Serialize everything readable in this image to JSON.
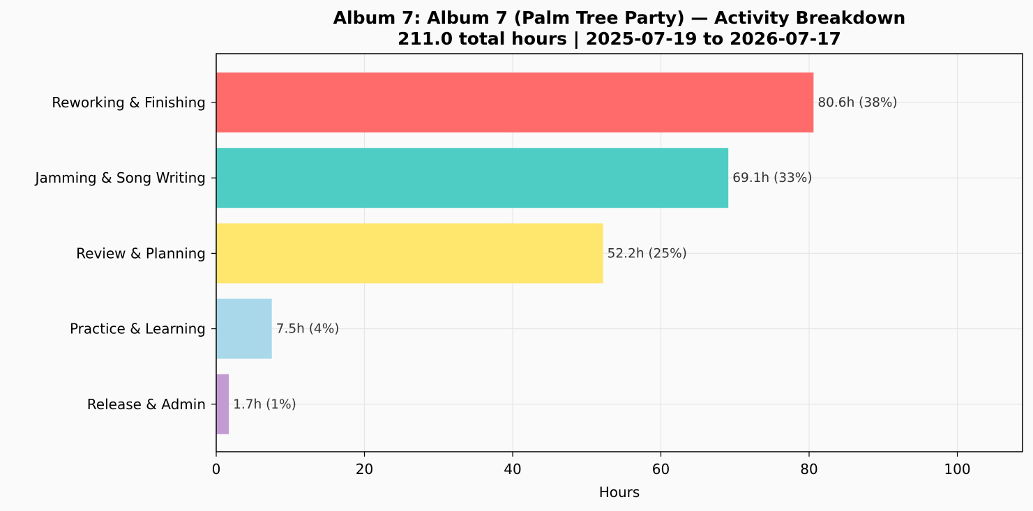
{
  "chart_data": {
    "type": "bar",
    "orientation": "horizontal",
    "title": "Album 7: Album 7 (Palm Tree Party) — Activity Breakdown",
    "subtitle": "211.0 total hours  |  2025-07-19 to 2026-07-17",
    "xlabel": "Hours",
    "ylabel": "",
    "xlim": [
      0,
      108.8
    ],
    "xticks": [
      0,
      20,
      40,
      60,
      80,
      100
    ],
    "grid": true,
    "legend": "none",
    "categories": [
      "Reworking & Finishing",
      "Jamming & Song Writing",
      "Review & Planning",
      "Practice & Learning",
      "Release & Admin"
    ],
    "values": [
      80.6,
      69.1,
      52.2,
      7.5,
      1.7
    ],
    "value_labels": [
      "80.6h (38%)",
      "69.1h (33%)",
      "52.2h (25%)",
      "7.5h (4%)",
      "1.7h (1%)"
    ],
    "colors": [
      "#ff6b6b",
      "#4ecdc4",
      "#ffe66d",
      "#a8d8ea",
      "#c39bd3"
    ]
  }
}
